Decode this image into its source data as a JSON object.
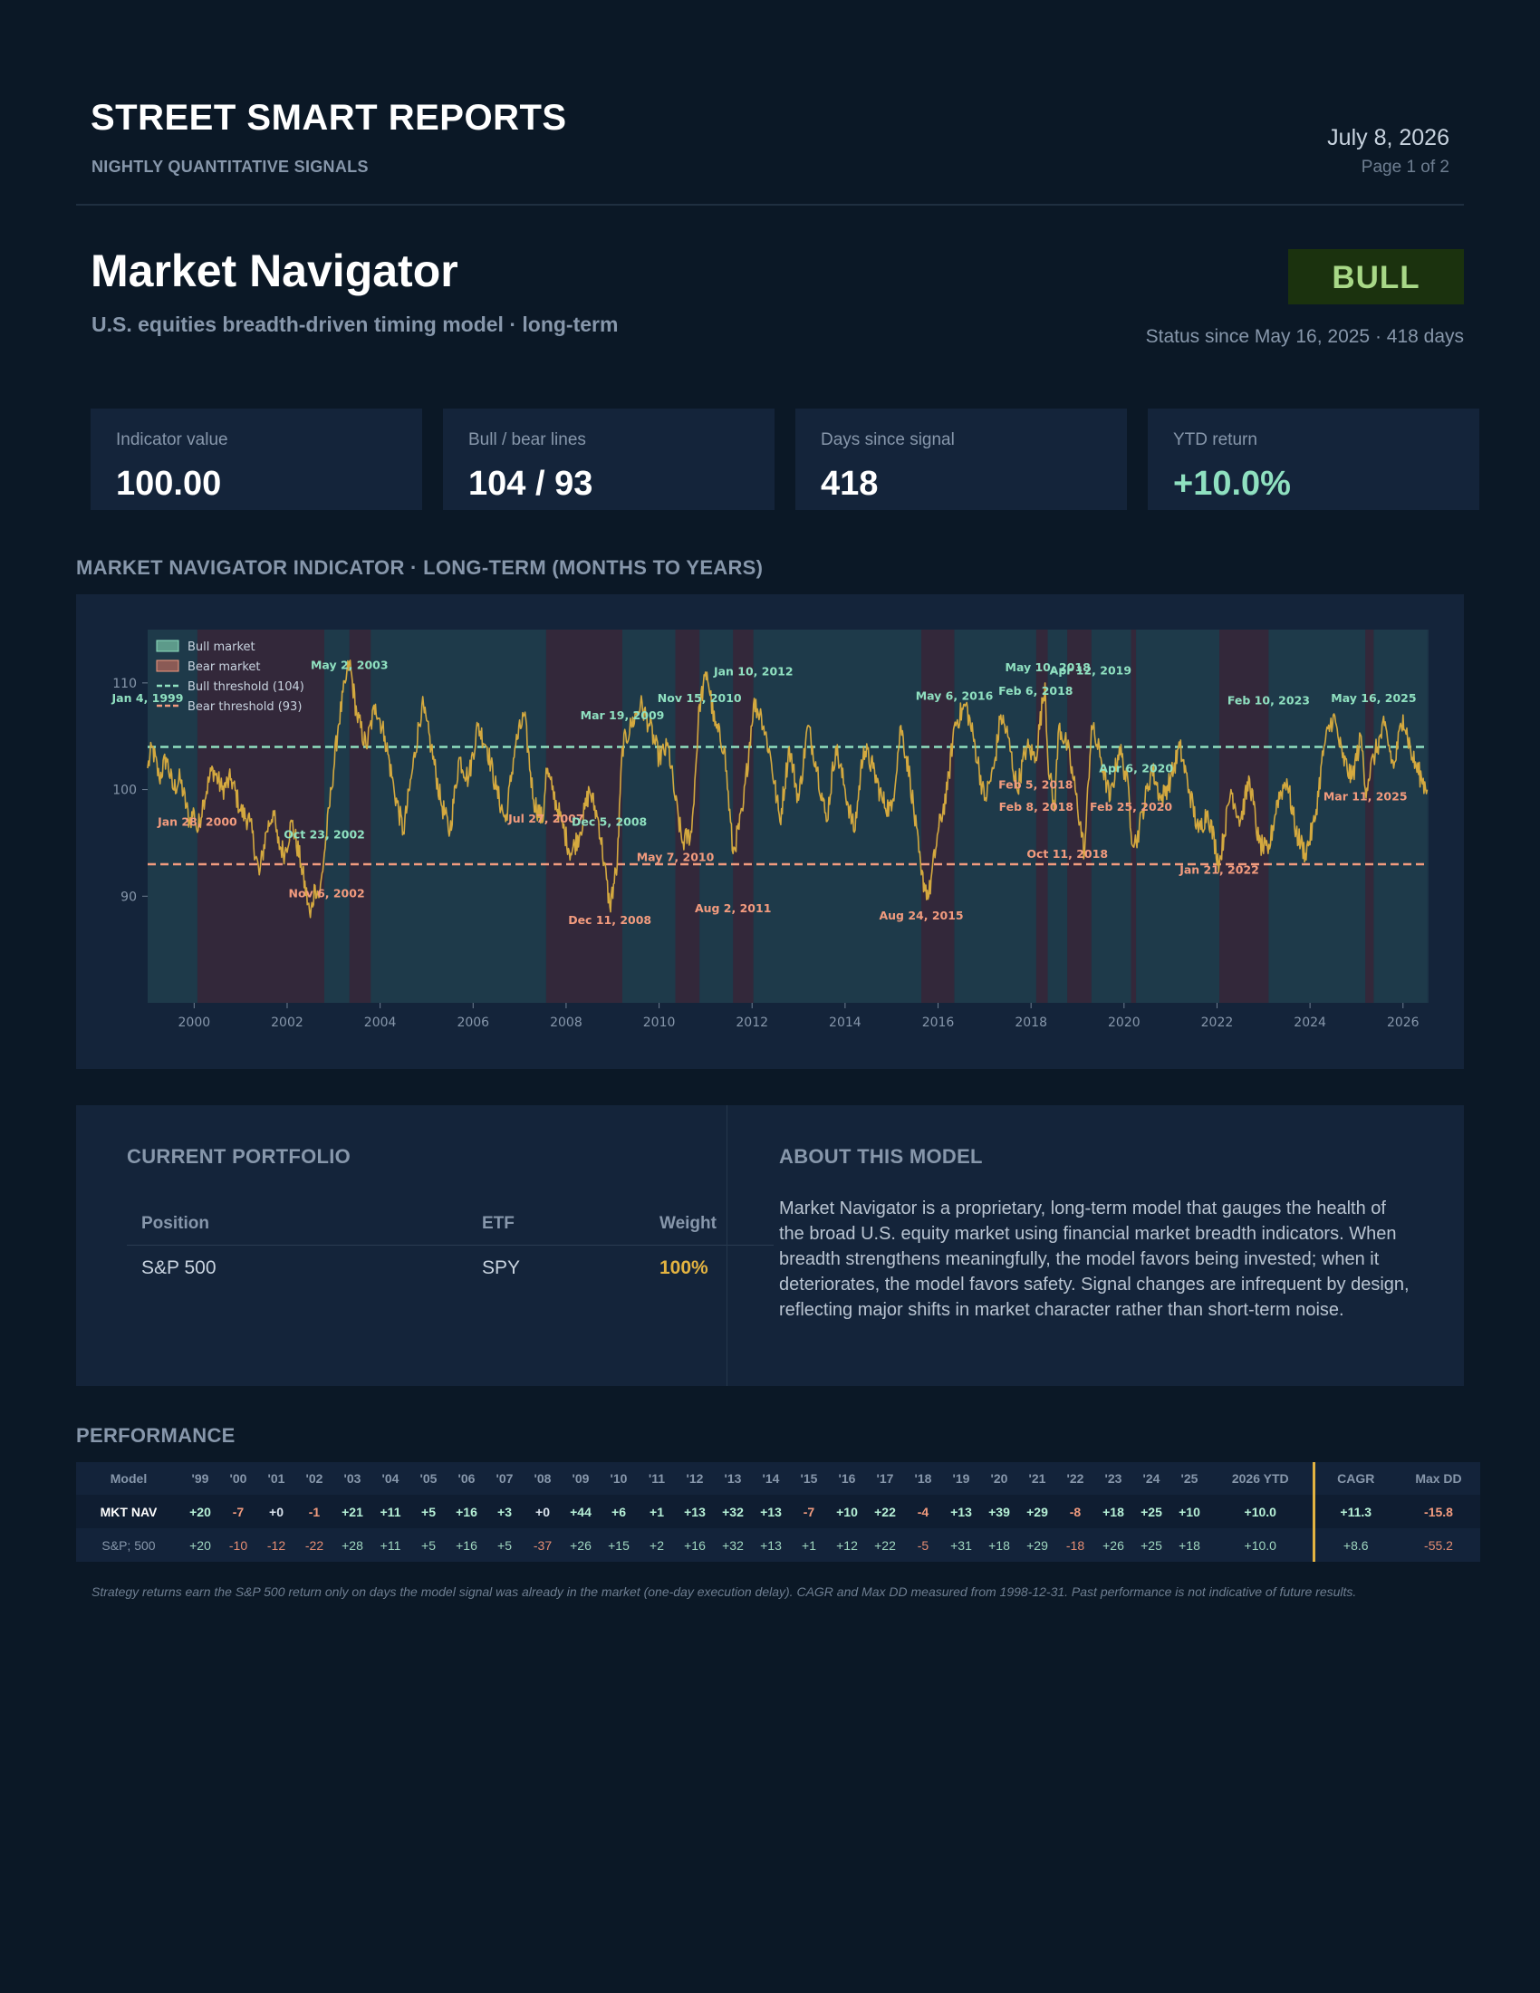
{
  "header": {
    "brand": "STREET SMART REPORTS",
    "tagline": "NIGHTLY QUANTITATIVE SIGNALS",
    "date": "July 8, 2026",
    "page": "Page 1 of 2"
  },
  "model": {
    "title": "Market Navigator",
    "subtitle": "U.S. equities breadth-driven timing model · long-term",
    "status": "BULL",
    "status_since": "Status since May 16, 2025 · 418 days",
    "status_color": "#a8d887"
  },
  "stats": [
    {
      "label": "Indicator value",
      "value": "100.00"
    },
    {
      "label": "Bull / bear lines",
      "value": "104 / 93"
    },
    {
      "label": "Days since signal",
      "value": "418"
    },
    {
      "label": "YTD return",
      "value": "+10.0%"
    }
  ],
  "chart_section_title": "MARKET NAVIGATOR INDICATOR · LONG-TERM (MONTHS TO YEARS)",
  "chart_data": {
    "type": "line",
    "title": "",
    "xlabel": "",
    "ylabel": "",
    "xlim": [
      1999.0,
      2026.55
    ],
    "ylim": [
      80,
      115
    ],
    "x_ticks": [
      "2000",
      "2002",
      "2004",
      "2006",
      "2008",
      "2010",
      "2012",
      "2014",
      "2016",
      "2018",
      "2020",
      "2022",
      "2024",
      "2026"
    ],
    "y_ticks": [
      "90",
      "100",
      "110"
    ],
    "grid": false,
    "legend_position": "top-left",
    "legend": [
      {
        "label": "Bull market",
        "kind": "bull-area"
      },
      {
        "label": "Bear market",
        "kind": "bear-area"
      },
      {
        "label": "Bull threshold (104)",
        "kind": "bull-line"
      },
      {
        "label": "Bear threshold (93)",
        "kind": "bear-line"
      }
    ],
    "bull_threshold": 104,
    "bear_threshold": 93,
    "colors": {
      "line": "#d4a93f",
      "bull": "#8fe0c0",
      "bear": "#f29b7e",
      "bull_area": "#1e3a4a",
      "bear_area": "#33283a"
    },
    "series": [
      {
        "x": [
          1999.0,
          1999.1,
          1999.25,
          1999.4,
          1999.55,
          1999.7,
          1999.9,
          2000.0,
          2000.07,
          2000.2,
          2000.4,
          2000.6,
          2000.8,
          2001.0,
          2001.2,
          2001.4,
          2001.55,
          2001.7,
          2001.8,
          2001.95,
          2002.1,
          2002.3,
          2002.5,
          2002.6,
          2002.7,
          2002.8,
          2002.95,
          2003.1,
          2003.25,
          2003.34,
          2003.5,
          2003.7,
          2003.9,
          2004.1,
          2004.3,
          2004.5,
          2004.7,
          2004.9,
          2005.1,
          2005.3,
          2005.5,
          2005.7,
          2005.9,
          2006.1,
          2006.3,
          2006.5,
          2006.7,
          2006.9,
          2007.1,
          2007.3,
          2007.5,
          2007.57,
          2007.7,
          2007.9,
          2008.1,
          2008.3,
          2008.5,
          2008.7,
          2008.94,
          2009.1,
          2009.21,
          2009.4,
          2009.6,
          2009.8,
          2010.0,
          2010.2,
          2010.35,
          2010.5,
          2010.7,
          2010.87,
          2011.03,
          2011.2,
          2011.4,
          2011.59,
          2011.8,
          2012.03,
          2012.2,
          2012.4,
          2012.6,
          2012.8,
          2013.0,
          2013.2,
          2013.4,
          2013.6,
          2013.8,
          2014.0,
          2014.2,
          2014.4,
          2014.6,
          2014.8,
          2015.0,
          2015.2,
          2015.4,
          2015.64,
          2015.8,
          2016.0,
          2016.2,
          2016.35,
          2016.6,
          2016.8,
          2017.0,
          2017.2,
          2017.35,
          2017.5,
          2017.7,
          2017.9,
          2018.1,
          2018.3,
          2018.36,
          2018.5,
          2018.6,
          2018.78,
          2018.95,
          2019.15,
          2019.3,
          2019.5,
          2019.7,
          2019.9,
          2020.1,
          2020.15,
          2020.26,
          2020.4,
          2020.6,
          2020.8,
          2021.0,
          2021.2,
          2021.4,
          2021.6,
          2021.8,
          2022.05,
          2022.3,
          2022.5,
          2022.7,
          2022.9,
          2023.1,
          2023.3,
          2023.5,
          2023.7,
          2023.9,
          2024.1,
          2024.3,
          2024.5,
          2024.7,
          2024.9,
          2025.1,
          2025.19,
          2025.37,
          2025.6,
          2025.8,
          2026.0,
          2026.2,
          2026.4,
          2026.52
        ],
        "y": [
          102,
          104,
          101,
          103,
          100,
          101,
          97,
          98,
          96,
          99,
          102,
          100,
          101,
          98,
          97,
          92,
          96,
          98,
          95,
          94,
          97,
          93,
          88,
          91,
          90,
          94,
          100,
          106,
          110,
          112,
          107,
          104,
          108,
          105,
          100,
          96,
          102,
          108,
          104,
          99,
          96,
          103,
          101,
          106,
          104,
          100,
          97,
          104,
          107,
          99,
          97,
          102,
          100,
          97,
          94,
          96,
          100,
          97,
          89,
          93,
          104,
          106,
          108,
          106,
          103,
          104,
          99,
          95,
          96,
          108,
          111,
          106,
          104,
          94,
          98,
          108,
          107,
          103,
          97,
          104,
          99,
          106,
          102,
          97,
          104,
          100,
          96,
          104,
          102,
          99,
          98,
          106,
          101,
          92,
          90,
          96,
          100,
          106,
          108,
          104,
          99,
          102,
          107,
          105,
          100,
          104,
          103,
          110,
          103,
          98,
          106,
          104,
          100,
          94,
          106,
          103,
          99,
          104,
          100,
          96,
          95,
          98,
          102,
          99,
          101,
          104,
          100,
          96,
          98,
          93,
          100,
          97,
          101,
          95,
          94,
          99,
          101,
          96,
          94,
          97,
          104,
          107,
          103,
          101,
          105,
          100,
          103,
          106,
          102,
          107,
          103,
          101,
          100
        ],
        "name": "",
        "last": 100.0
      }
    ],
    "regimes": [
      {
        "start": 1999.0,
        "end": 2000.07,
        "kind": "bull"
      },
      {
        "start": 2000.07,
        "end": 2002.8,
        "kind": "bear"
      },
      {
        "start": 2002.8,
        "end": 2003.34,
        "kind": "bull"
      },
      {
        "start": 2003.34,
        "end": 2003.8,
        "kind": "bear"
      },
      {
        "start": 2003.8,
        "end": 2007.57,
        "kind": "bull"
      },
      {
        "start": 2007.57,
        "end": 2009.21,
        "kind": "bear"
      },
      {
        "start": 2009.21,
        "end": 2010.35,
        "kind": "bull"
      },
      {
        "start": 2010.35,
        "end": 2010.87,
        "kind": "bear"
      },
      {
        "start": 2010.87,
        "end": 2011.59,
        "kind": "bull"
      },
      {
        "start": 2011.59,
        "end": 2012.03,
        "kind": "bear"
      },
      {
        "start": 2012.03,
        "end": 2015.64,
        "kind": "bull"
      },
      {
        "start": 2015.64,
        "end": 2016.35,
        "kind": "bear"
      },
      {
        "start": 2016.35,
        "end": 2018.11,
        "kind": "bull"
      },
      {
        "start": 2018.11,
        "end": 2018.36,
        "kind": "bear"
      },
      {
        "start": 2018.36,
        "end": 2018.78,
        "kind": "bull"
      },
      {
        "start": 2018.78,
        "end": 2019.3,
        "kind": "bear"
      },
      {
        "start": 2019.3,
        "end": 2020.15,
        "kind": "bull"
      },
      {
        "start": 2020.15,
        "end": 2020.26,
        "kind": "bear"
      },
      {
        "start": 2020.26,
        "end": 2022.05,
        "kind": "bull"
      },
      {
        "start": 2022.05,
        "end": 2023.11,
        "kind": "bear"
      },
      {
        "start": 2023.11,
        "end": 2025.19,
        "kind": "bull"
      },
      {
        "start": 2025.19,
        "end": 2025.37,
        "kind": "bear"
      },
      {
        "start": 2025.37,
        "end": 2026.52,
        "kind": "bull"
      }
    ],
    "annotations": [
      {
        "text": "Jan 4, 1999",
        "x": 1999.0,
        "y": 108.2,
        "kind": "bull"
      },
      {
        "text": "Jan 28, 2000",
        "x": 2000.07,
        "y": 96.6,
        "kind": "bear"
      },
      {
        "text": "Oct 23, 2002",
        "x": 2002.8,
        "y": 95.4,
        "kind": "bull"
      },
      {
        "text": "Nov 6, 2002",
        "x": 2002.85,
        "y": 89.9,
        "kind": "bear"
      },
      {
        "text": "May 2, 2003",
        "x": 2003.34,
        "y": 111.3,
        "kind": "bull"
      },
      {
        "text": "Jul 27, 2007",
        "x": 2007.57,
        "y": 96.9,
        "kind": "bear"
      },
      {
        "text": "Dec 5, 2008",
        "x": 2008.93,
        "y": 96.6,
        "kind": "bull"
      },
      {
        "text": "Dec 11, 2008",
        "x": 2008.94,
        "y": 87.4,
        "kind": "bear"
      },
      {
        "text": "Mar 19, 2009",
        "x": 2009.21,
        "y": 106.6,
        "kind": "bull"
      },
      {
        "text": "May 7, 2010",
        "x": 2010.35,
        "y": 93.3,
        "kind": "bear"
      },
      {
        "text": "Nov 15, 2010",
        "x": 2010.87,
        "y": 108.2,
        "kind": "bull"
      },
      {
        "text": "Aug 2, 2011",
        "x": 2011.59,
        "y": 88.5,
        "kind": "bear"
      },
      {
        "text": "Jan 10, 2012",
        "x": 2012.03,
        "y": 110.7,
        "kind": "bull"
      },
      {
        "text": "Aug 24, 2015",
        "x": 2015.64,
        "y": 87.8,
        "kind": "bear"
      },
      {
        "text": "May 6, 2016",
        "x": 2016.35,
        "y": 108.4,
        "kind": "bull"
      },
      {
        "text": "Feb 5, 2018",
        "x": 2018.1,
        "y": 100.1,
        "kind": "bear"
      },
      {
        "text": "Feb 6, 2018",
        "x": 2018.1,
        "y": 108.9,
        "kind": "bull"
      },
      {
        "text": "Feb 8, 2018",
        "x": 2018.11,
        "y": 98.0,
        "kind": "bear"
      },
      {
        "text": "May 10, 2018",
        "x": 2018.36,
        "y": 111.1,
        "kind": "bull"
      },
      {
        "text": "Oct 11, 2018",
        "x": 2018.78,
        "y": 93.6,
        "kind": "bear"
      },
      {
        "text": "Apr 12, 2019",
        "x": 2019.28,
        "y": 110.8,
        "kind": "bull"
      },
      {
        "text": "Feb 25, 2020",
        "x": 2020.15,
        "y": 98.0,
        "kind": "bear"
      },
      {
        "text": "Apr 6, 2020",
        "x": 2020.26,
        "y": 101.6,
        "kind": "bull"
      },
      {
        "text": "Jan 21, 2022",
        "x": 2022.05,
        "y": 92.1,
        "kind": "bear"
      },
      {
        "text": "Feb 10, 2023",
        "x": 2023.11,
        "y": 108.0,
        "kind": "bull"
      },
      {
        "text": "Mar 11, 2025",
        "x": 2025.19,
        "y": 99.0,
        "kind": "bear"
      },
      {
        "text": "May 16, 2025",
        "x": 2025.37,
        "y": 108.2,
        "kind": "bull"
      }
    ]
  },
  "portfolio": {
    "title": "CURRENT PORTFOLIO",
    "headers": [
      "Position",
      "ETF",
      "Weight"
    ],
    "rows": [
      [
        "S&P 500",
        "SPY",
        "100%"
      ]
    ]
  },
  "about": {
    "title": "ABOUT THIS MODEL",
    "text": "Market Navigator is a proprietary, long-term model that gauges the health of the broad U.S. equity market using financial market breadth indicators. When breadth strengthens meaningfully, the model favors being invested; when it deteriorates, the model favors safety. Signal changes are infrequent by design, reflecting major shifts in market character rather than short-term noise."
  },
  "performance": {
    "title": "PERFORMANCE",
    "headers": [
      "Model",
      "'99",
      "'00",
      "'01",
      "'02",
      "'03",
      "'04",
      "'05",
      "'06",
      "'07",
      "'08",
      "'09",
      "'10",
      "'11",
      "'12",
      "'13",
      "'14",
      "'15",
      "'16",
      "'17",
      "'18",
      "'19",
      "'20",
      "'21",
      "'22",
      "'23",
      "'24",
      "'25",
      "2026 YTD",
      "CAGR",
      "Max DD"
    ],
    "rows": [
      [
        "MKT NAV",
        "+20",
        "-7",
        "+0",
        "-1",
        "+21",
        "+11",
        "+5",
        "+16",
        "+3",
        "+0",
        "+44",
        "+6",
        "+1",
        "+13",
        "+32",
        "+13",
        "-7",
        "+10",
        "+22",
        "-4",
        "+13",
        "+39",
        "+29",
        "-8",
        "+18",
        "+25",
        "+10",
        "+10.0",
        "+11.3",
        "-15.8"
      ],
      [
        "S&P; 500",
        "+20",
        "-10",
        "-12",
        "-22",
        "+28",
        "+11",
        "+5",
        "+16",
        "+5",
        "-37",
        "+26",
        "+15",
        "+2",
        "+16",
        "+32",
        "+13",
        "+1",
        "+12",
        "+22",
        "-5",
        "+31",
        "+18",
        "+29",
        "-18",
        "+26",
        "+25",
        "+18",
        "+10.0",
        "+8.6",
        "-55.2"
      ]
    ],
    "footnote": "Strategy returns earn the S&P 500 return only on days the model signal was already in the market (one-day execution delay). CAGR and Max DD measured from 1998-12-31. Past performance is not indicative of future results."
  }
}
